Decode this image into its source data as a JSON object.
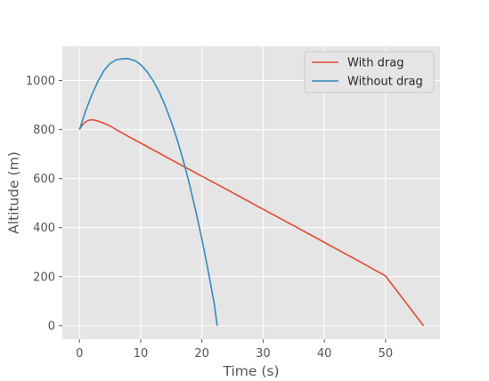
{
  "chart_data": {
    "type": "line",
    "title": "",
    "xlabel": "Time (s)",
    "ylabel": "Altitude (m)",
    "xlim": [
      -2.8,
      58.9
    ],
    "ylim": [
      -55,
      1140
    ],
    "xticks": [
      0,
      10,
      20,
      30,
      40,
      50
    ],
    "yticks": [
      0,
      200,
      400,
      600,
      800,
      1000
    ],
    "grid": true,
    "legend_position": "top-right",
    "series": [
      {
        "name": "With drag",
        "color": "#E24A33",
        "x": [
          0,
          0.5,
          1,
          1.5,
          2,
          2.5,
          3,
          4,
          5,
          6,
          8,
          10,
          15,
          20,
          25,
          30,
          35,
          40,
          45,
          50,
          56.2
        ],
        "y": [
          800,
          820,
          832,
          838,
          840,
          838,
          835,
          826,
          815,
          800,
          772,
          745,
          677,
          610,
          543,
          475,
          408,
          340,
          272,
          203,
          0
        ]
      },
      {
        "name": "Without drag",
        "color": "#348ABD",
        "x": [
          0,
          1,
          2,
          3,
          4,
          5,
          6,
          7,
          7.7,
          8,
          9,
          10,
          11,
          12,
          13,
          14,
          15,
          16,
          17,
          18,
          19,
          20,
          21,
          22,
          22.5
        ],
        "y": [
          800,
          876,
          941,
          996,
          1041,
          1070,
          1085,
          1089,
          1090,
          1089,
          1082,
          1065,
          1038,
          1001,
          955,
          898,
          832,
          756,
          670,
          574,
          468,
          353,
          227,
          92,
          0
        ]
      }
    ]
  }
}
